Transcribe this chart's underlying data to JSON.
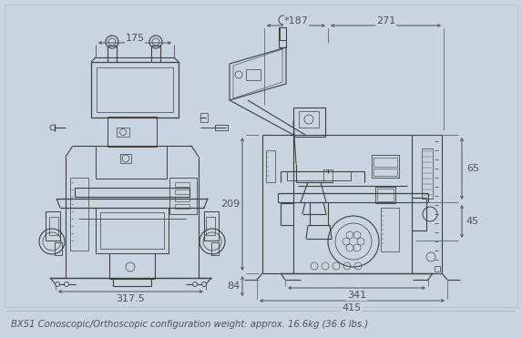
{
  "bg": "#c8d4df",
  "lc": "#404040",
  "dc": "#505060",
  "tc": "#505060",
  "caption": "BX51 Conoscopic/Orthoscopic configuration weight: approx. 16.6kg (36.6 lbs.)",
  "caption_fs": 7.2,
  "dim_fs": 8.0,
  "fig_w": 5.73,
  "fig_h": 3.71,
  "dpi": 100
}
